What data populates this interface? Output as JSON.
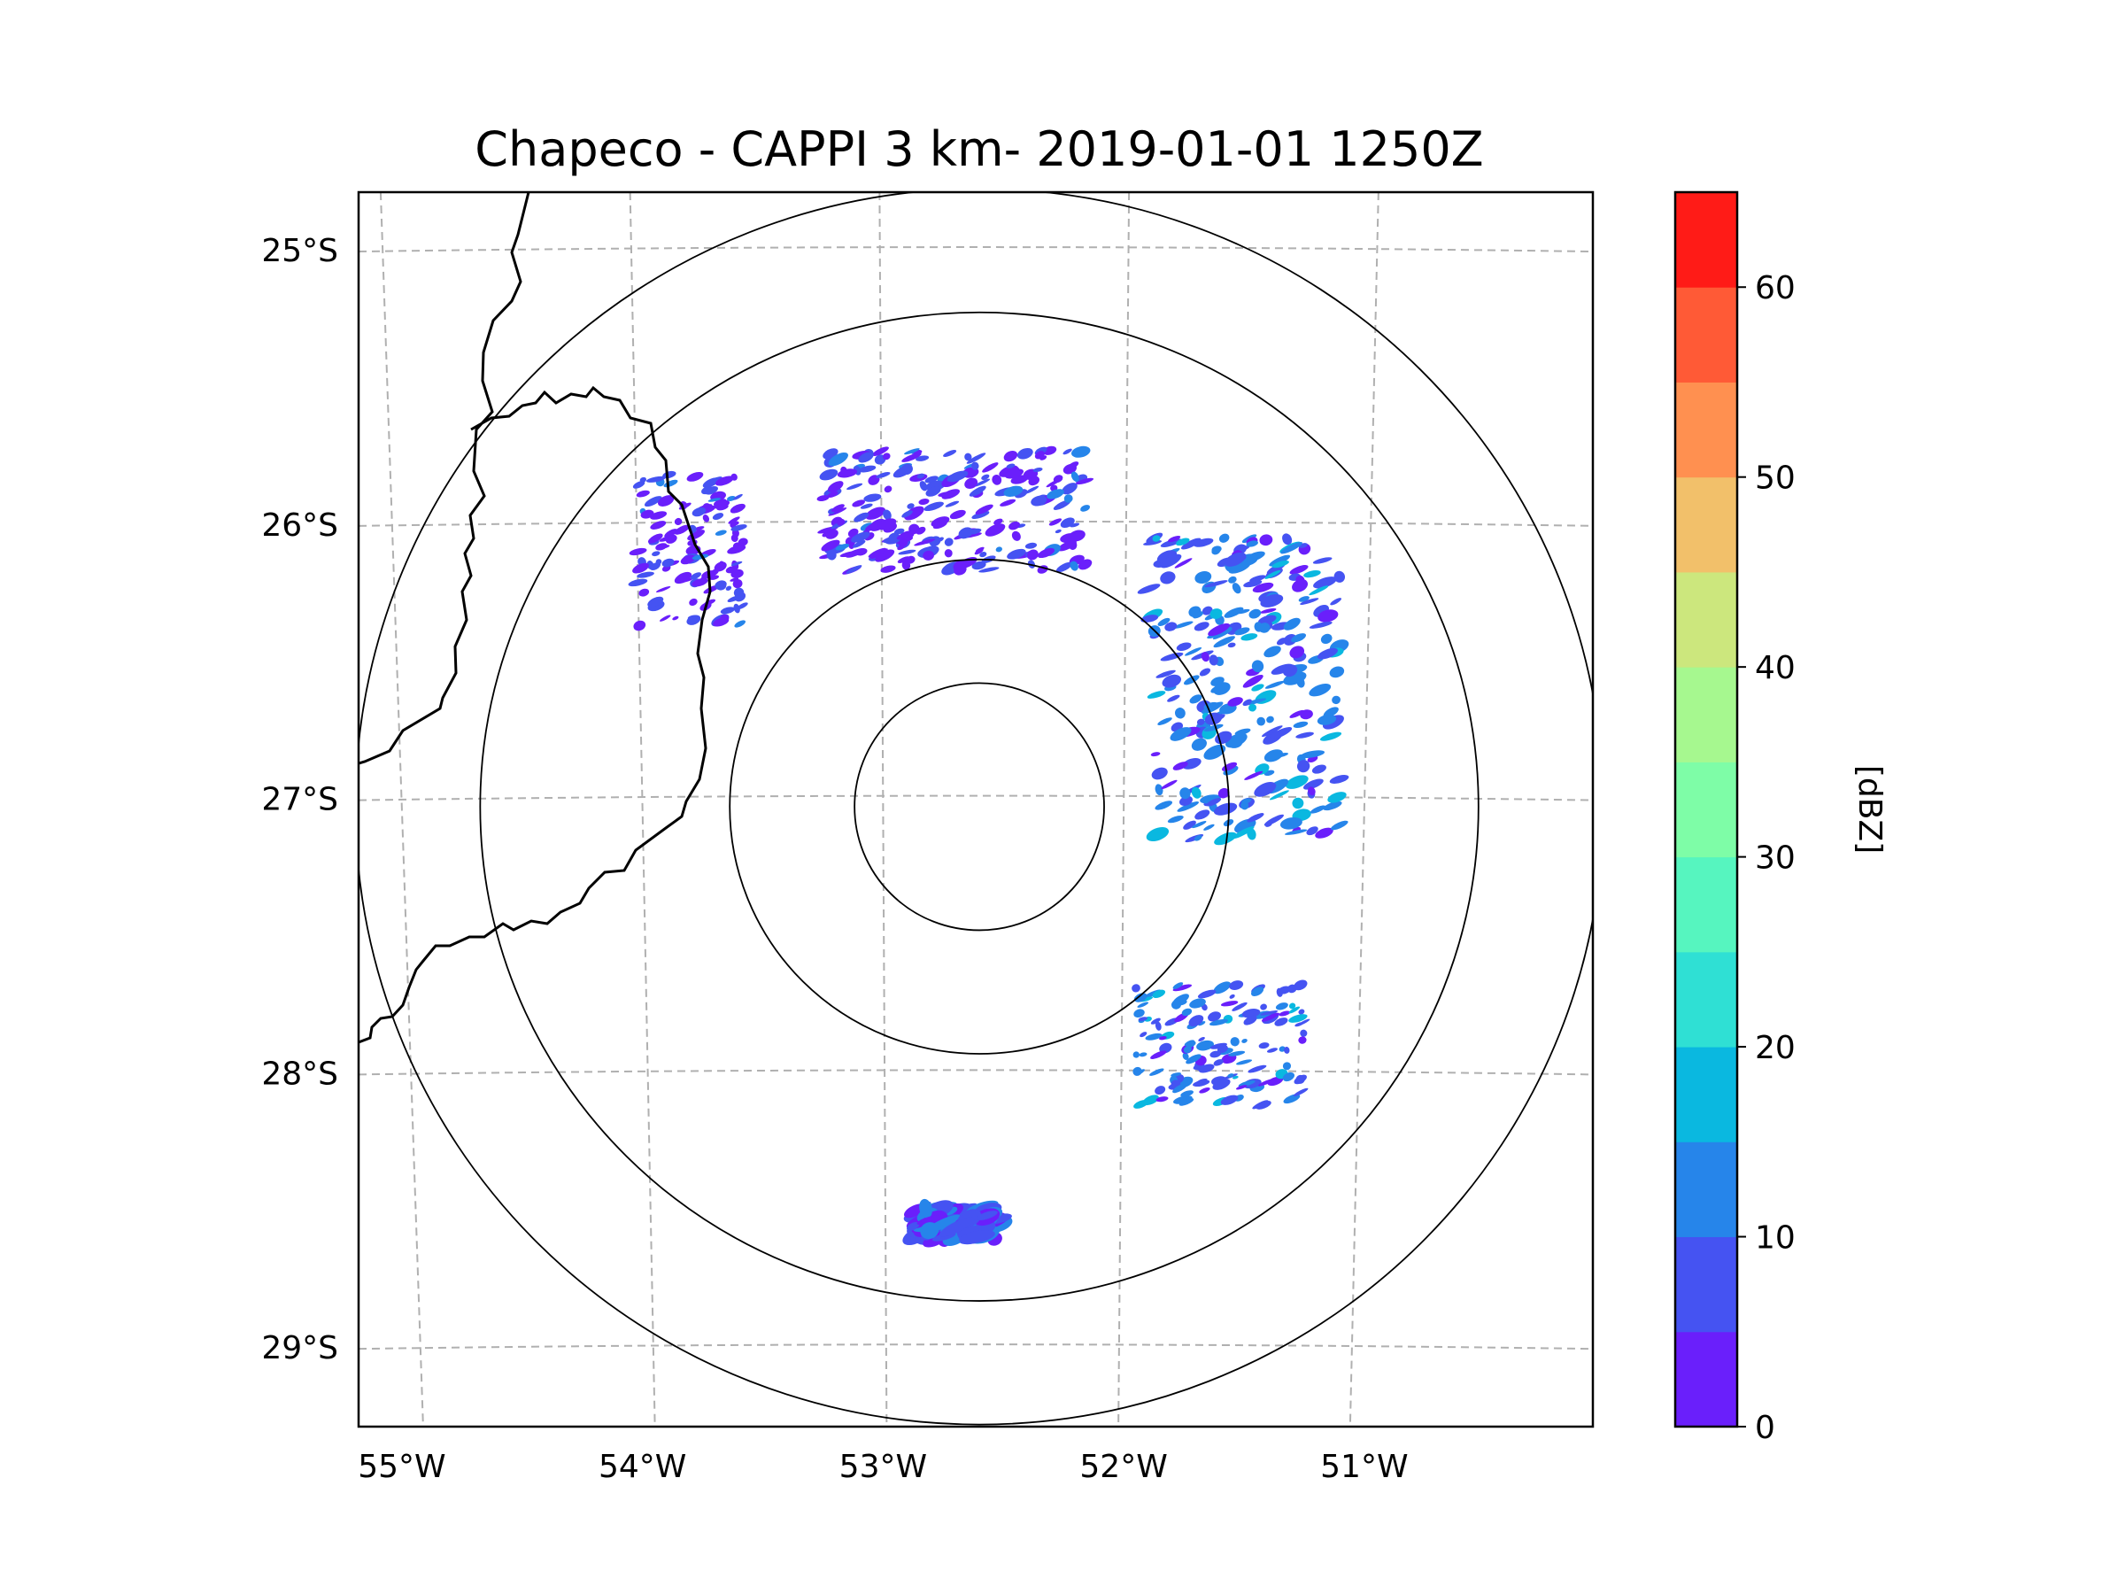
{
  "title": "Chapeco - CAPPI 3 km- 2019-01-01 1250Z",
  "map": {
    "lon_range": [
      -55.18,
      -50.05
    ],
    "lat_range": [
      -29.29,
      -24.79
    ],
    "lat_ticks": [
      {
        "value": -25,
        "label": "25°S"
      },
      {
        "value": -26,
        "label": "26°S"
      },
      {
        "value": -27,
        "label": "27°S"
      },
      {
        "value": -28,
        "label": "28°S"
      },
      {
        "value": -29,
        "label": "29°S"
      }
    ],
    "lon_ticks": [
      {
        "value": -55,
        "label": "55°W"
      },
      {
        "value": -54,
        "label": "54°W"
      },
      {
        "value": -53,
        "label": "53°W"
      },
      {
        "value": -52,
        "label": "52°W"
      },
      {
        "value": -51,
        "label": "51°W"
      }
    ],
    "radar_center": {
      "lon": -52.6,
      "lat": -27.03
    },
    "range_rings_km": [
      50,
      100,
      200,
      250
    ],
    "gridline_color": "#b0b0b0",
    "border_color": "#000000"
  },
  "colorbar": {
    "label": "[dBZ]",
    "min": 0,
    "max": 65,
    "step": 5,
    "colors": [
      "#6a1ffb",
      "#4553f2",
      "#2685ea",
      "#0ab8e0",
      "#2fe0d4",
      "#56f5bf",
      "#7efda7",
      "#a6f88f",
      "#cce77d",
      "#f2c06a",
      "#ff9050",
      "#ff5a36",
      "#ff1b17"
    ],
    "ticks": [
      {
        "value": 0,
        "label": "0"
      },
      {
        "value": 10,
        "label": "10"
      },
      {
        "value": 20,
        "label": "20"
      },
      {
        "value": 30,
        "label": "30"
      },
      {
        "value": 40,
        "label": "40"
      },
      {
        "value": 50,
        "label": "50"
      },
      {
        "value": 60,
        "label": "60"
      }
    ]
  },
  "reflectivity_areas": [
    {
      "name": "south-cell",
      "lon": -52.7,
      "lat": -28.55,
      "dbz": 8
    },
    {
      "name": "east-cells",
      "lon": -51.5,
      "lat": -26.6,
      "dbz": 10
    },
    {
      "name": "north-cells",
      "lon": -52.7,
      "lat": -25.95,
      "dbz": 5
    },
    {
      "name": "northwest-cells",
      "lon": -53.8,
      "lat": -26.1,
      "dbz": 5
    },
    {
      "name": "southeast-cells",
      "lon": -51.6,
      "lat": -27.9,
      "dbz": 10
    }
  ]
}
